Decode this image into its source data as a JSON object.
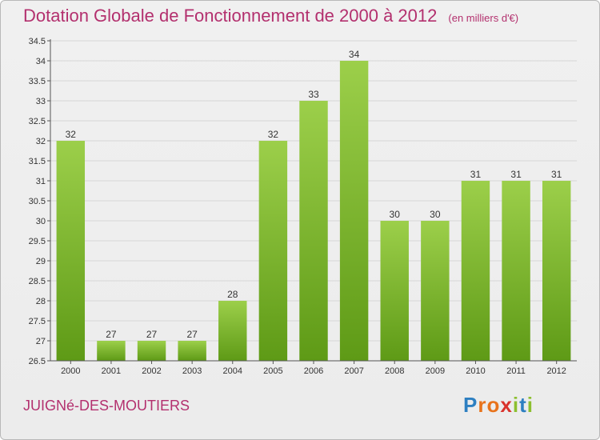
{
  "header": {
    "title": "Dotation Globale de Fonctionnement de 2000 à 2012",
    "subtitle": "(en milliers d'€)"
  },
  "footer": {
    "commune": "JUIGNé-DES-MOUTIERS",
    "logo_letters": [
      "P",
      "r",
      "o",
      "x",
      "i",
      "t",
      "i"
    ],
    "logo_colors": [
      "#2d7fc1",
      "#e8731b",
      "#e8731b",
      "#d9322c",
      "#8cbf2f",
      "#2d7fc1",
      "#8cbf2f"
    ]
  },
  "colors": {
    "title": "#b3306e",
    "bar_top": "#9ccf4a",
    "bar_bottom": "#5e9a16",
    "grid": "#d6d6d6"
  },
  "chart_data": {
    "type": "bar",
    "title": "Dotation Globale de Fonctionnement de 2000 à 2012",
    "subtitle": "(en milliers d'€)",
    "categories": [
      "2000",
      "2001",
      "2002",
      "2003",
      "2004",
      "2005",
      "2006",
      "2007",
      "2008",
      "2009",
      "2010",
      "2011",
      "2012"
    ],
    "values": [
      32,
      27,
      27,
      27,
      28,
      32,
      33,
      34,
      30,
      30,
      31,
      31,
      31
    ],
    "ylim": [
      26.5,
      34.5
    ],
    "yticks": [
      "26.5",
      "27",
      "27.5",
      "28",
      "28.5",
      "29",
      "29.5",
      "30",
      "30.5",
      "31",
      "31.5",
      "32",
      "32.5",
      "33",
      "33.5",
      "34",
      "34.5"
    ],
    "grid": true,
    "legend": "none"
  }
}
